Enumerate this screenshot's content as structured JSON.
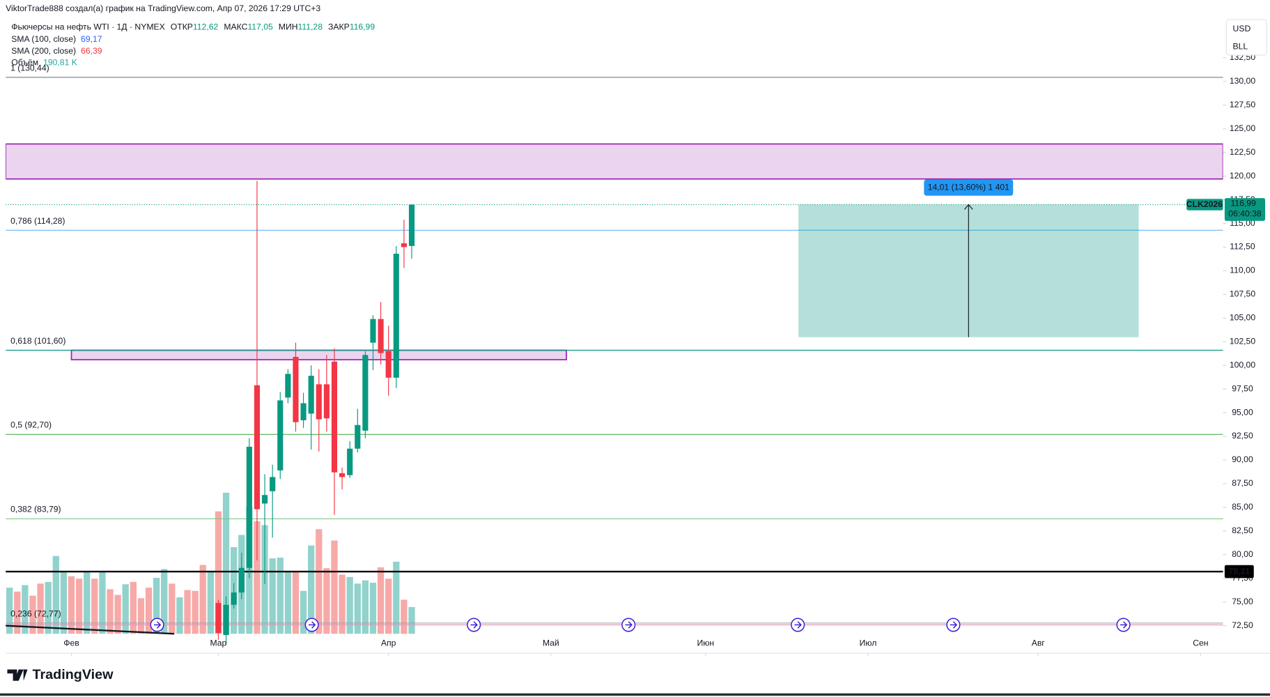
{
  "header": {
    "attribution": "ViktorTrade888 создал(а) график на TradingView.com, Апр 07, 2026 17:29 UTC+3",
    "symbol": "Фьючерсы на нефть WTI · 1Д · NYMEX",
    "ohlc": [
      {
        "label": "ОТКР",
        "value": "112,62"
      },
      {
        "label": "МАКС",
        "value": "117,05"
      },
      {
        "label": "МИН",
        "value": "111,28"
      },
      {
        "label": "ЗАКР",
        "value": "116,99"
      }
    ],
    "indicators": [
      {
        "name": "SMA (100, close)",
        "value": "69,17",
        "color": "#2962ff"
      },
      {
        "name": "SMA (200, close)",
        "value": "66,39",
        "color": "#f23645"
      },
      {
        "name": "Объём",
        "value": "190,81 K",
        "color": "#26a69a"
      }
    ]
  },
  "chart_data": {
    "type": "candlestick",
    "up_color": "#089981",
    "down_color": "#f23645",
    "x": [
      27,
      28,
      29,
      30,
      31,
      32,
      33,
      34,
      35,
      36,
      37,
      38,
      39,
      40,
      41,
      42,
      43,
      44,
      45,
      46,
      47,
      48,
      49,
      50,
      51,
      52
    ],
    "open": [
      74.89,
      71.5,
      74.7,
      76.0,
      78.6,
      97.9,
      85.4,
      86.7,
      88.9,
      96.6,
      100.9,
      94.2,
      94.9,
      98.0,
      98.0,
      100.4,
      88.6,
      88.4,
      91.2,
      93.1,
      102.4,
      104.9,
      101.5,
      98.7,
      112.9,
      112.62
    ],
    "high": [
      75.2,
      75.6,
      77.0,
      80.2,
      92.3,
      119.5,
      88.5,
      89.5,
      97.2,
      99.6,
      102.4,
      97.1,
      100.0,
      99.6,
      101.1,
      101.8,
      89.2,
      92.0,
      95.4,
      101.5,
      105.3,
      106.7,
      104.2,
      112.6,
      115.4,
      117.05
    ],
    "low": [
      71.0,
      70.5,
      74.3,
      75.3,
      77.5,
      79.4,
      76.9,
      81.8,
      88.0,
      96.0,
      93.0,
      93.4,
      91.1,
      90.9,
      93.0,
      84.2,
      86.9,
      88.1,
      90.8,
      92.3,
      99.5,
      100.1,
      96.8,
      97.6,
      110.3,
      111.28
    ],
    "close": [
      71.72,
      74.7,
      76.0,
      78.6,
      91.4,
      84.8,
      86.3,
      88.2,
      96.3,
      99.1,
      94.0,
      96.0,
      98.9,
      94.3,
      94.4,
      88.7,
      88.2,
      91.2,
      93.7,
      101.1,
      104.9,
      101.3,
      98.7,
      111.8,
      112.5,
      116.99
    ],
    "volume": {
      "x": [
        0,
        1,
        2,
        3,
        4,
        5,
        6,
        7,
        8,
        9,
        10,
        11,
        12,
        13,
        14,
        15,
        16,
        17,
        18,
        19,
        20,
        21,
        22,
        23,
        24,
        25,
        26,
        27,
        28,
        29,
        30,
        31,
        32,
        33,
        34,
        35,
        36,
        37,
        38,
        39,
        40,
        41,
        42,
        43,
        44,
        45,
        46,
        47,
        48,
        49,
        50,
        51,
        52
      ],
      "values": [
        329,
        301,
        347,
        272,
        358,
        370,
        555,
        439,
        410,
        393,
        445,
        393,
        445,
        318,
        277,
        353,
        370,
        254,
        329,
        399,
        462,
        358,
        260,
        312,
        306,
        491,
        439,
        873,
        1006,
        618,
        705,
        907,
        803,
        775,
        538,
        543,
        445,
        445,
        306,
        630,
        746,
        468,
        665,
        422,
        405,
        358,
        381,
        364,
        474,
        393,
        514,
        243,
        190.81
      ],
      "colors": [
        "#92d2cc",
        "#f7a9a7",
        "#92d2cc",
        "#f7a9a7",
        "#f7a9a7",
        "#92d2cc",
        "#92d2cc",
        "#92d2cc",
        "#f7a9a7",
        "#f7a9a7",
        "#92d2cc",
        "#f7a9a7",
        "#92d2cc",
        "#f7a9a7",
        "#f7a9a7",
        "#92d2cc",
        "#f7a9a7",
        "#f7a9a7",
        "#f7a9a7",
        "#92d2cc",
        "#92d2cc",
        "#f7a9a7",
        "#92d2cc",
        "#f7a9a7",
        "#f7a9a7",
        "#f7a9a7",
        "#92d2cc",
        "#f7a9a7",
        "#92d2cc",
        "#92d2cc",
        "#92d2cc",
        "#92d2cc",
        "#f7a9a7",
        "#92d2cc",
        "#92d2cc",
        "#92d2cc",
        "#92d2cc",
        "#f7a9a7",
        "#92d2cc",
        "#92d2cc",
        "#f7a9a7",
        "#f7a9a7",
        "#f7a9a7",
        "#f7a9a7",
        "#92d2cc",
        "#92d2cc",
        "#92d2cc",
        "#92d2cc",
        "#f7a9a7",
        "#f7a9a7",
        "#92d2cc",
        "#f7a9a7",
        "#92d2cc"
      ],
      "ylim": [
        0,
        4000
      ]
    },
    "xlim": [
      -0.5,
      156.9
    ],
    "xticks": [
      {
        "value": 8,
        "label": "Фев"
      },
      {
        "value": 27,
        "label": "Мар"
      },
      {
        "value": 49,
        "label": "Апр"
      },
      {
        "value": 70,
        "label": "Май"
      },
      {
        "value": 90,
        "label": "Июн"
      },
      {
        "value": 111,
        "label": "Июл"
      },
      {
        "value": 133,
        "label": "Авг"
      },
      {
        "value": 154,
        "label": "Сен"
      }
    ],
    "ylim": [
      69.58,
      136.9
    ],
    "yticks": [
      {
        "value": 72.5,
        "label": "72,50"
      },
      {
        "value": 75,
        "label": "75,00"
      },
      {
        "value": 77.5,
        "label": "77,50"
      },
      {
        "value": 80,
        "label": "80,00"
      },
      {
        "value": 82.5,
        "label": "82,50"
      },
      {
        "value": 85,
        "label": "85,00"
      },
      {
        "value": 87.5,
        "label": "87,50"
      },
      {
        "value": 90,
        "label": "90,00"
      },
      {
        "value": 92.5,
        "label": "92,50"
      },
      {
        "value": 95,
        "label": "95,00"
      },
      {
        "value": 97.5,
        "label": "97,50"
      },
      {
        "value": 100,
        "label": "100,00"
      },
      {
        "value": 102.5,
        "label": "102,50"
      },
      {
        "value": 105,
        "label": "105,00"
      },
      {
        "value": 107.5,
        "label": "107,50"
      },
      {
        "value": 110,
        "label": "110,00"
      },
      {
        "value": 112.5,
        "label": "112,50"
      },
      {
        "value": 115,
        "label": "115,00"
      },
      {
        "value": 117.5,
        "label": "117,50"
      },
      {
        "value": 120,
        "label": "120,00"
      },
      {
        "value": 122.5,
        "label": "122,50"
      },
      {
        "value": 125,
        "label": "125,00"
      },
      {
        "value": 127.5,
        "label": "127,50"
      },
      {
        "value": 130,
        "label": "130,00"
      },
      {
        "value": 132.5,
        "label": "132,50"
      }
    ],
    "grid": false,
    "fib_levels": [
      {
        "label": "1 (130,44)",
        "value": 130.44,
        "color": "#787b86"
      },
      {
        "label": "0,786 (114,28)",
        "value": 114.28,
        "color": "#64b5f6"
      },
      {
        "label": "0,618 (101,60)",
        "value": 101.6,
        "color": "#089981"
      },
      {
        "label": "0,5 (92,70)",
        "value": 92.7,
        "color": "#4caf50"
      },
      {
        "label": "0,382 (83,79)",
        "value": 83.79,
        "color": "#81c784"
      },
      {
        "label": "0,236 (72,77)",
        "value": 72.77,
        "color": "#a0a3ab"
      }
    ],
    "zones": [
      {
        "xlim": [
          -0.5,
          156.9
        ],
        "ylim": [
          119.7,
          123.4
        ],
        "color": "#9c27b0"
      },
      {
        "xlim": [
          8,
          72
        ],
        "ylim": [
          100.6,
          101.6
        ],
        "color": "#9c27b0"
      }
    ],
    "horizontal_line": {
      "value": 78.21,
      "label": "78,21",
      "color": "#000000"
    },
    "last_price": {
      "value": 116.99,
      "label": "116,99",
      "countdown": "06:40:38",
      "symbol": "CLK2026",
      "color": "#089981"
    },
    "position": {
      "xlim": [
        102,
        146
      ],
      "arrow_x": 124,
      "ylim": [
        102.98,
        116.99
      ],
      "label": "14,01 (13,60%) 1 401",
      "color": "#089981"
    },
    "currency": [
      "USD",
      "BLL"
    ]
  },
  "footer": {
    "brand": "TradingView"
  }
}
